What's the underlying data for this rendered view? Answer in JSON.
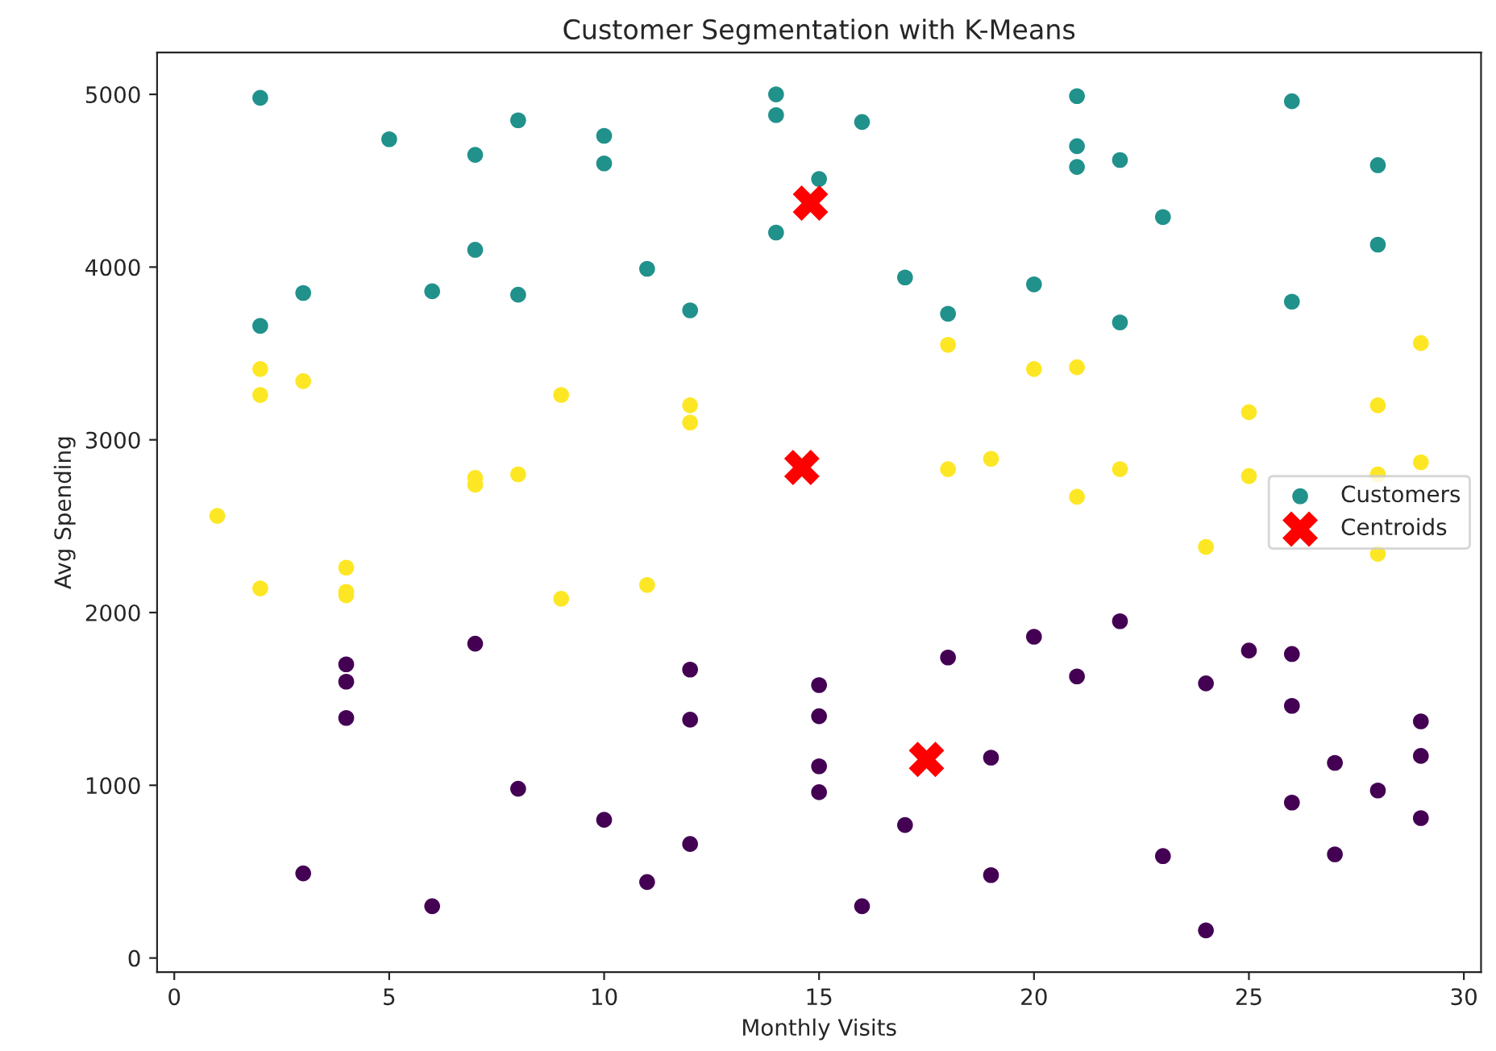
{
  "chart_data": {
    "type": "scatter",
    "title": "Customer Segmentation with K-Means",
    "xlabel": "Monthly Visits",
    "ylabel": "Avg Spending",
    "xlim": [
      -0.4,
      30.4
    ],
    "ylim": [
      -82,
      5242
    ],
    "xticks": [
      0,
      5,
      10,
      15,
      20,
      25,
      30
    ],
    "yticks": [
      0,
      1000,
      2000,
      3000,
      4000,
      5000
    ],
    "grid": false,
    "legend": "right",
    "series": [
      {
        "name": "Customers",
        "color": "#21918c",
        "marker": "circle",
        "x": [
          2,
          5,
          7,
          8,
          10,
          10,
          14,
          14,
          15,
          16,
          21,
          21,
          21,
          22,
          26,
          28,
          23,
          14,
          7,
          11,
          17,
          20,
          28,
          3,
          6,
          8,
          12,
          18,
          2,
          22,
          26,
          2,
          3,
          2,
          9,
          12,
          12,
          18,
          20,
          21,
          29,
          25,
          28,
          19,
          18,
          22,
          29,
          7,
          7,
          8,
          21,
          25,
          28,
          1,
          4,
          4,
          4,
          2,
          9,
          11,
          24,
          28,
          4,
          4,
          4,
          7,
          8,
          3,
          6,
          10,
          11,
          12,
          12,
          12,
          15,
          15,
          15,
          15,
          16,
          17,
          18,
          19,
          19,
          20,
          21,
          22,
          23,
          24,
          24,
          25,
          26,
          26,
          26,
          27,
          27,
          28,
          29,
          29,
          29
        ],
        "values": [
          4980,
          4740,
          4650,
          4850,
          4760,
          4600,
          5000,
          4880,
          4510,
          4840,
          4990,
          4700,
          4580,
          4620,
          4960,
          4590,
          4290,
          4200,
          4100,
          3990,
          3940,
          3900,
          4130,
          3850,
          3860,
          3840,
          3750,
          3730,
          3660,
          3680,
          3800,
          3410,
          3340,
          3260,
          3260,
          3200,
          3100,
          3550,
          3410,
          3420,
          3560,
          3160,
          3200,
          2890,
          2830,
          2830,
          2870,
          2780,
          2740,
          2800,
          2670,
          2790,
          2800,
          2560,
          2260,
          2120,
          2100,
          2140,
          2080,
          2160,
          2380,
          2340,
          1700,
          1600,
          1390,
          1820,
          980,
          490,
          300,
          800,
          440,
          1670,
          1380,
          660,
          1580,
          1400,
          1110,
          960,
          300,
          770,
          1740,
          1160,
          480,
          1860,
          1630,
          1950,
          590,
          1590,
          160,
          1780,
          1760,
          1460,
          900,
          1130,
          600,
          970,
          1370,
          1170,
          810
        ],
        "colors": [
          "#21918c",
          "#21918c",
          "#21918c",
          "#21918c",
          "#21918c",
          "#21918c",
          "#21918c",
          "#21918c",
          "#21918c",
          "#21918c",
          "#21918c",
          "#21918c",
          "#21918c",
          "#21918c",
          "#21918c",
          "#21918c",
          "#21918c",
          "#21918c",
          "#21918c",
          "#21918c",
          "#21918c",
          "#21918c",
          "#21918c",
          "#21918c",
          "#21918c",
          "#21918c",
          "#21918c",
          "#21918c",
          "#21918c",
          "#21918c",
          "#21918c",
          "#fde725",
          "#fde725",
          "#fde725",
          "#fde725",
          "#fde725",
          "#fde725",
          "#fde725",
          "#fde725",
          "#fde725",
          "#fde725",
          "#fde725",
          "#fde725",
          "#fde725",
          "#fde725",
          "#fde725",
          "#fde725",
          "#fde725",
          "#fde725",
          "#fde725",
          "#fde725",
          "#fde725",
          "#fde725",
          "#fde725",
          "#fde725",
          "#fde725",
          "#fde725",
          "#fde725",
          "#fde725",
          "#fde725",
          "#fde725",
          "#fde725",
          "#440154",
          "#440154",
          "#440154",
          "#440154",
          "#440154",
          "#440154",
          "#440154",
          "#440154",
          "#440154",
          "#440154",
          "#440154",
          "#440154",
          "#440154",
          "#440154",
          "#440154",
          "#440154",
          "#440154",
          "#440154",
          "#440154",
          "#440154",
          "#440154",
          "#440154",
          "#440154",
          "#440154",
          "#440154",
          "#440154",
          "#440154",
          "#440154",
          "#440154",
          "#440154",
          "#440154",
          "#440154",
          "#440154",
          "#440154",
          "#440154",
          "#440154",
          "#440154"
        ]
      },
      {
        "name": "Centroids",
        "color": "#ff0000",
        "marker": "cross",
        "x": [
          14.8,
          14.6,
          17.5
        ],
        "values": [
          4370,
          2840,
          1150
        ]
      }
    ]
  }
}
